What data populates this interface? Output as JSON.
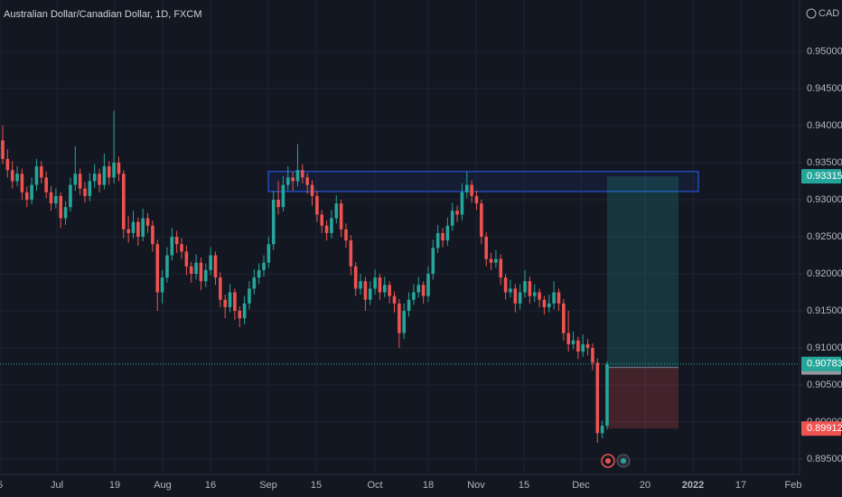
{
  "chart_data": {
    "type": "candlestick",
    "title": "Australian Dollar/Canadian Dollar, 1D, FXCM",
    "currency": "CAD",
    "up_color": "#26a69a",
    "down_color": "#ef5350",
    "ylim": [
      0.89293,
      0.95695
    ],
    "yticks": [
      {
        "value": 0.895,
        "label": "0.89500"
      },
      {
        "value": 0.9,
        "label": "0.90000"
      },
      {
        "value": 0.905,
        "label": "0.90500"
      },
      {
        "value": 0.91,
        "label": "0.91000"
      },
      {
        "value": 0.915,
        "label": "0.91500"
      },
      {
        "value": 0.92,
        "label": "0.92000"
      },
      {
        "value": 0.925,
        "label": "0.92500"
      },
      {
        "value": 0.93,
        "label": "0.93000"
      },
      {
        "value": 0.935,
        "label": "0.93500"
      },
      {
        "value": 0.94,
        "label": "0.94000"
      },
      {
        "value": 0.945,
        "label": "0.94500"
      },
      {
        "value": 0.95,
        "label": "0.95000"
      }
    ],
    "grid": true,
    "xlabels": [
      "5",
      "Jul",
      "19",
      "Aug",
      "16",
      "Sep",
      "15",
      "Oct",
      "18",
      "Nov",
      "15",
      "Dec",
      "20",
      "2022",
      "17",
      "Feb"
    ],
    "last_price": 0.90783,
    "zone": [
      0.9311,
      0.9338
    ],
    "position": {
      "target": 0.93315,
      "entry": 0.90736,
      "stop": 0.89912
    },
    "ohlc": [
      [
        0.938,
        0.94,
        0.9348,
        0.9355
      ],
      [
        0.9355,
        0.9368,
        0.933,
        0.934
      ],
      [
        0.934,
        0.9352,
        0.9315,
        0.9325
      ],
      [
        0.9325,
        0.9345,
        0.9318,
        0.9335
      ],
      [
        0.9335,
        0.9342,
        0.93,
        0.931
      ],
      [
        0.931,
        0.9318,
        0.929,
        0.93
      ],
      [
        0.93,
        0.933,
        0.9294,
        0.932
      ],
      [
        0.932,
        0.9355,
        0.9312,
        0.9345
      ],
      [
        0.9345,
        0.9352,
        0.9322,
        0.933
      ],
      [
        0.933,
        0.9338,
        0.9302,
        0.931
      ],
      [
        0.931,
        0.9318,
        0.9285,
        0.9295
      ],
      [
        0.9295,
        0.9315,
        0.9288,
        0.9305
      ],
      [
        0.9305,
        0.931,
        0.9262,
        0.9275
      ],
      [
        0.9275,
        0.9298,
        0.9266,
        0.929
      ],
      [
        0.929,
        0.933,
        0.9284,
        0.932
      ],
      [
        0.932,
        0.9372,
        0.9312,
        0.9335
      ],
      [
        0.9335,
        0.9342,
        0.9306,
        0.9315
      ],
      [
        0.9315,
        0.9324,
        0.9296,
        0.9305
      ],
      [
        0.9305,
        0.9336,
        0.9298,
        0.9325
      ],
      [
        0.9325,
        0.9348,
        0.9316,
        0.9335
      ],
      [
        0.9335,
        0.9342,
        0.931,
        0.932
      ],
      [
        0.932,
        0.9362,
        0.9314,
        0.9345
      ],
      [
        0.9345,
        0.9352,
        0.932,
        0.933
      ],
      [
        0.933,
        0.942,
        0.9322,
        0.935
      ],
      [
        0.935,
        0.9358,
        0.9325,
        0.9335
      ],
      [
        0.9335,
        0.934,
        0.9248,
        0.926
      ],
      [
        0.926,
        0.9278,
        0.9242,
        0.9255
      ],
      [
        0.9255,
        0.9285,
        0.9248,
        0.927
      ],
      [
        0.927,
        0.9276,
        0.9238,
        0.925
      ],
      [
        0.925,
        0.9288,
        0.9244,
        0.9275
      ],
      [
        0.9275,
        0.9282,
        0.9255,
        0.9265
      ],
      [
        0.9265,
        0.9272,
        0.923,
        0.924
      ],
      [
        0.924,
        0.9246,
        0.915,
        0.9175
      ],
      [
        0.9175,
        0.9205,
        0.916,
        0.9195
      ],
      [
        0.9195,
        0.9236,
        0.9188,
        0.9225
      ],
      [
        0.9225,
        0.9262,
        0.9218,
        0.925
      ],
      [
        0.925,
        0.9258,
        0.9228,
        0.924
      ],
      [
        0.924,
        0.9248,
        0.922,
        0.923
      ],
      [
        0.923,
        0.9238,
        0.9198,
        0.921
      ],
      [
        0.921,
        0.9216,
        0.9188,
        0.92
      ],
      [
        0.92,
        0.9226,
        0.9192,
        0.9215
      ],
      [
        0.9215,
        0.9222,
        0.9178,
        0.919
      ],
      [
        0.919,
        0.9214,
        0.9182,
        0.9205
      ],
      [
        0.9205,
        0.9236,
        0.9198,
        0.9225
      ],
      [
        0.9225,
        0.923,
        0.9185,
        0.9195
      ],
      [
        0.9195,
        0.9202,
        0.9155,
        0.9165
      ],
      [
        0.9165,
        0.9172,
        0.914,
        0.9155
      ],
      [
        0.9155,
        0.9186,
        0.9148,
        0.9175
      ],
      [
        0.9175,
        0.918,
        0.9138,
        0.915
      ],
      [
        0.915,
        0.9156,
        0.9128,
        0.914
      ],
      [
        0.914,
        0.917,
        0.9132,
        0.916
      ],
      [
        0.916,
        0.919,
        0.9152,
        0.918
      ],
      [
        0.918,
        0.9206,
        0.9172,
        0.9195
      ],
      [
        0.9195,
        0.9214,
        0.9186,
        0.9205
      ],
      [
        0.9205,
        0.9225,
        0.9196,
        0.9215
      ],
      [
        0.9215,
        0.925,
        0.9208,
        0.924
      ],
      [
        0.924,
        0.9312,
        0.9232,
        0.93
      ],
      [
        0.93,
        0.9325,
        0.928,
        0.929
      ],
      [
        0.929,
        0.9332,
        0.9284,
        0.932
      ],
      [
        0.932,
        0.9345,
        0.9312,
        0.933
      ],
      [
        0.933,
        0.9338,
        0.9312,
        0.9325
      ],
      [
        0.9325,
        0.9375,
        0.9318,
        0.934
      ],
      [
        0.934,
        0.9348,
        0.9322,
        0.933
      ],
      [
        0.933,
        0.9336,
        0.9308,
        0.932
      ],
      [
        0.932,
        0.9326,
        0.9292,
        0.9305
      ],
      [
        0.9305,
        0.9312,
        0.927,
        0.928
      ],
      [
        0.928,
        0.9286,
        0.9255,
        0.9265
      ],
      [
        0.9265,
        0.9272,
        0.9245,
        0.9255
      ],
      [
        0.9255,
        0.9286,
        0.9248,
        0.9275
      ],
      [
        0.9275,
        0.9306,
        0.9268,
        0.9295
      ],
      [
        0.9295,
        0.93,
        0.925,
        0.926
      ],
      [
        0.926,
        0.9268,
        0.9235,
        0.9245
      ],
      [
        0.9245,
        0.9252,
        0.9198,
        0.921
      ],
      [
        0.921,
        0.9216,
        0.917,
        0.918
      ],
      [
        0.918,
        0.92,
        0.9172,
        0.919
      ],
      [
        0.919,
        0.9196,
        0.915,
        0.9165
      ],
      [
        0.9165,
        0.919,
        0.9158,
        0.918
      ],
      [
        0.918,
        0.9206,
        0.9172,
        0.9195
      ],
      [
        0.9195,
        0.92,
        0.9165,
        0.9175
      ],
      [
        0.9175,
        0.9196,
        0.9168,
        0.9185
      ],
      [
        0.9185,
        0.919,
        0.916,
        0.917
      ],
      [
        0.917,
        0.9176,
        0.9148,
        0.916
      ],
      [
        0.916,
        0.9166,
        0.91,
        0.912
      ],
      [
        0.912,
        0.916,
        0.9112,
        0.915
      ],
      [
        0.915,
        0.9175,
        0.9142,
        0.9165
      ],
      [
        0.9165,
        0.9186,
        0.9158,
        0.9175
      ],
      [
        0.9175,
        0.9196,
        0.9168,
        0.9185
      ],
      [
        0.9185,
        0.919,
        0.916,
        0.917
      ],
      [
        0.917,
        0.921,
        0.9162,
        0.92
      ],
      [
        0.92,
        0.9246,
        0.9192,
        0.9235
      ],
      [
        0.9235,
        0.9266,
        0.9228,
        0.9255
      ],
      [
        0.9255,
        0.9262,
        0.9236,
        0.9245
      ],
      [
        0.9245,
        0.9276,
        0.9238,
        0.9265
      ],
      [
        0.9265,
        0.9296,
        0.9258,
        0.9285
      ],
      [
        0.9285,
        0.9292,
        0.927,
        0.928
      ],
      [
        0.928,
        0.9322,
        0.9272,
        0.931
      ],
      [
        0.931,
        0.9338,
        0.9302,
        0.932
      ],
      [
        0.932,
        0.9326,
        0.9296,
        0.9305
      ],
      [
        0.9305,
        0.9312,
        0.9286,
        0.9295
      ],
      [
        0.9295,
        0.93,
        0.924,
        0.925
      ],
      [
        0.925,
        0.9256,
        0.921,
        0.922
      ],
      [
        0.922,
        0.9228,
        0.9205,
        0.9215
      ],
      [
        0.9215,
        0.9232,
        0.9208,
        0.922
      ],
      [
        0.922,
        0.9226,
        0.9185,
        0.9195
      ],
      [
        0.9195,
        0.92,
        0.9165,
        0.9175
      ],
      [
        0.9175,
        0.9192,
        0.9168,
        0.918
      ],
      [
        0.918,
        0.9186,
        0.9148,
        0.916
      ],
      [
        0.916,
        0.9186,
        0.9152,
        0.9175
      ],
      [
        0.9175,
        0.9205,
        0.9168,
        0.919
      ],
      [
        0.919,
        0.9196,
        0.916,
        0.917
      ],
      [
        0.917,
        0.9186,
        0.9162,
        0.9175
      ],
      [
        0.9175,
        0.918,
        0.9155,
        0.9165
      ],
      [
        0.9165,
        0.917,
        0.9145,
        0.9155
      ],
      [
        0.9155,
        0.9172,
        0.9148,
        0.916
      ],
      [
        0.916,
        0.919,
        0.9152,
        0.9175
      ],
      [
        0.9175,
        0.918,
        0.915,
        0.916
      ],
      [
        0.916,
        0.9166,
        0.911,
        0.912
      ],
      [
        0.912,
        0.915,
        0.9095,
        0.9105
      ],
      [
        0.9105,
        0.9122,
        0.9098,
        0.911
      ],
      [
        0.911,
        0.9115,
        0.9085,
        0.9095
      ],
      [
        0.9095,
        0.9118,
        0.9088,
        0.9105
      ],
      [
        0.9105,
        0.9112,
        0.909,
        0.91
      ],
      [
        0.91,
        0.9106,
        0.907,
        0.908
      ],
      [
        0.908,
        0.9086,
        0.8972,
        0.8985
      ],
      [
        0.8985,
        0.9002,
        0.8978,
        0.8995
      ],
      [
        0.8995,
        0.9082,
        0.899,
        0.9078
      ]
    ]
  }
}
